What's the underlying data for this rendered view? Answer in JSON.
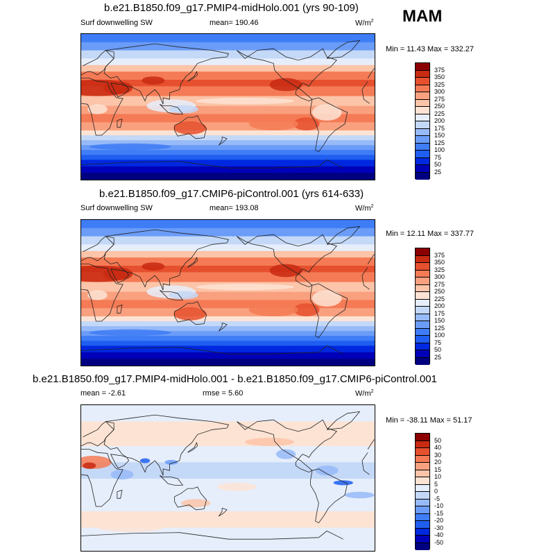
{
  "season_label": "MAM",
  "unit_base": "W/m",
  "unit_exp": "2",
  "panels": [
    {
      "title": "b.e21.B1850.f09_g17.PMIP4-midHolo.001 (yrs 90-109)",
      "left_label": "Surf downwelling SW",
      "mean_label": "mean= 190.46",
      "minmax_label": "Min =  11.43 Max = 332.27"
    },
    {
      "title": "b.e21.B1850.f09_g17.CMIP6-piControl.001 (yrs 614-633)",
      "left_label": "Surf downwelling SW",
      "mean_label": "mean= 193.08",
      "minmax_label": "Min =  12.11 Max = 337.77"
    },
    {
      "title": "b.e21.B1850.f09_g17.PMIP4-midHolo.001 - b.e21.B1850.f09_g17.CMIP6-piControl.001",
      "mean_label": "mean =  -2.61",
      "rmse_label": "rmse =   5.60",
      "minmax_label": "Min = -38.11 Max =  51.17"
    }
  ],
  "chart_data": [
    {
      "type": "heatmap",
      "title": "b.e21.B1850.f09_g17.PMIP4-midHolo.001 (yrs 90-109)",
      "variable": "Surf downwelling SW",
      "units": "W/m2",
      "mean": 190.46,
      "min": 11.43,
      "max": 332.27,
      "colorbar_levels": [
        25,
        50,
        75,
        100,
        125,
        150,
        175,
        200,
        225,
        250,
        275,
        300,
        325,
        350,
        375
      ]
    },
    {
      "type": "heatmap",
      "title": "b.e21.B1850.f09_g17.CMIP6-piControl.001 (yrs 614-633)",
      "variable": "Surf downwelling SW",
      "units": "W/m2",
      "mean": 193.08,
      "min": 12.11,
      "max": 337.77,
      "colorbar_levels": [
        25,
        50,
        75,
        100,
        125,
        150,
        175,
        200,
        225,
        250,
        275,
        300,
        325,
        350,
        375
      ]
    },
    {
      "type": "heatmap",
      "title": "b.e21.B1850.f09_g17.PMIP4-midHolo.001 - b.e21.B1850.f09_g17.CMIP6-piControl.001",
      "units": "W/m2",
      "mean": -2.61,
      "rmse": 5.6,
      "min": -38.11,
      "max": 51.17,
      "colorbar_levels": [
        -50,
        -40,
        -30,
        -20,
        -15,
        -10,
        -5,
        0,
        5,
        10,
        15,
        20,
        30,
        40,
        50
      ]
    }
  ],
  "colors": {
    "abs_scale": [
      "#000080",
      "#0000b8",
      "#0028e0",
      "#1f5ef0",
      "#3f7df6",
      "#6a9cf8",
      "#97baf8",
      "#c4d8f7",
      "#e6eefb",
      "#fde3d3",
      "#fcc4a8",
      "#f9a07f",
      "#f47b55",
      "#e6502e",
      "#c82a12",
      "#8b0000"
    ],
    "diff_scale": [
      "#000080",
      "#0000b8",
      "#0028e0",
      "#1f5ef0",
      "#3f7df6",
      "#6a9cf8",
      "#97baf8",
      "#c4d8f7",
      "#e6eefb",
      "#fde3d3",
      "#fcc4a8",
      "#f9a07f",
      "#f47b55",
      "#e6502e",
      "#c82a12",
      "#8b0000"
    ]
  }
}
